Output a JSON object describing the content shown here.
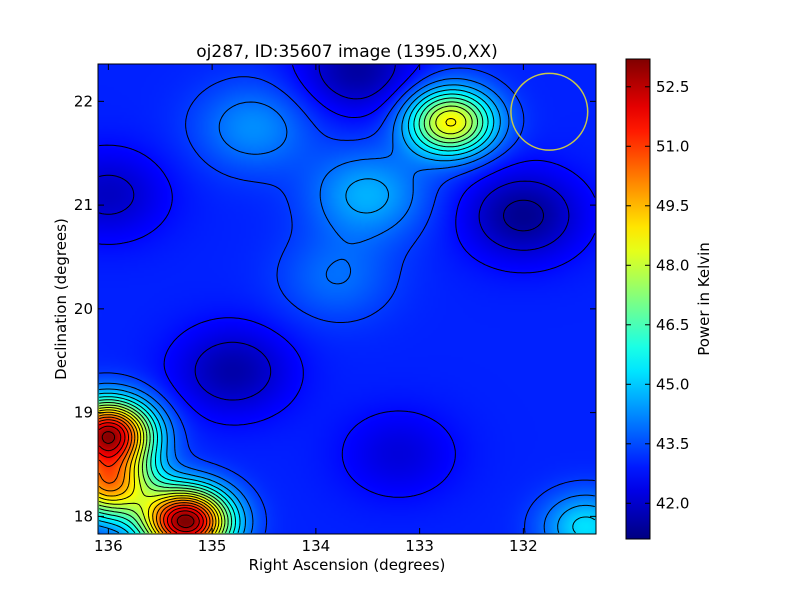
{
  "chart_data": {
    "type": "heatmap",
    "title": "oj287, ID:35607 image (1395.0,XX)",
    "xlabel": "Right Ascension (degrees)",
    "ylabel": "Declination (degrees)",
    "colorbar_label": "Power in Kelvin",
    "colormap": "jet",
    "x_inverted": true,
    "xlim": [
      136.1,
      131.3
    ],
    "ylim": [
      17.83,
      22.36
    ],
    "xticks": [
      136,
      135,
      134,
      133,
      132
    ],
    "yticks": [
      18,
      19,
      20,
      21,
      22
    ],
    "xtick_labels": [
      "136",
      "135",
      "134",
      "133",
      "132"
    ],
    "ytick_labels": [
      "18",
      "19",
      "20",
      "21",
      "22"
    ],
    "clim": [
      41.1,
      53.2
    ],
    "colorbar_ticks": [
      42.0,
      43.5,
      45.0,
      46.5,
      48.0,
      49.5,
      51.0,
      52.5
    ],
    "colorbar_tick_labels": [
      "42.0",
      "43.5",
      "45.0",
      "46.5",
      "48.0",
      "49.5",
      "51.0",
      "52.5"
    ],
    "background_level": 43.0,
    "features": [
      {
        "ra": 132.7,
        "dec": 21.8,
        "value": 48.8,
        "kind": "peak"
      },
      {
        "ra": 135.25,
        "dec": 17.95,
        "value": 53.2,
        "kind": "peak"
      },
      {
        "ra": 136.0,
        "dec": 18.8,
        "value": 52.5,
        "kind": "peak"
      },
      {
        "ra": 136.0,
        "dec": 18.3,
        "value": 49.5,
        "kind": "peak"
      },
      {
        "ra": 133.5,
        "dec": 21.1,
        "value": 44.7,
        "kind": "ridge"
      },
      {
        "ra": 134.6,
        "dec": 21.75,
        "value": 44.3,
        "kind": "ridge"
      },
      {
        "ra": 131.4,
        "dec": 17.9,
        "value": 45.3,
        "kind": "peak"
      },
      {
        "ra": 133.8,
        "dec": 20.3,
        "value": 43.9,
        "kind": "ridge"
      },
      {
        "ra": 132.0,
        "dec": 20.9,
        "value": 41.3,
        "kind": "trough"
      },
      {
        "ra": 134.8,
        "dec": 19.4,
        "value": 41.6,
        "kind": "trough"
      },
      {
        "ra": 133.6,
        "dec": 22.3,
        "value": 41.5,
        "kind": "trough"
      },
      {
        "ra": 136.0,
        "dec": 21.1,
        "value": 41.9,
        "kind": "trough"
      },
      {
        "ra": 133.2,
        "dec": 18.6,
        "value": 42.2,
        "kind": "trough"
      }
    ],
    "beam_circle": {
      "ra": 131.75,
      "dec": 21.9,
      "radius_deg": 0.37,
      "color": "#c8c84a"
    }
  }
}
